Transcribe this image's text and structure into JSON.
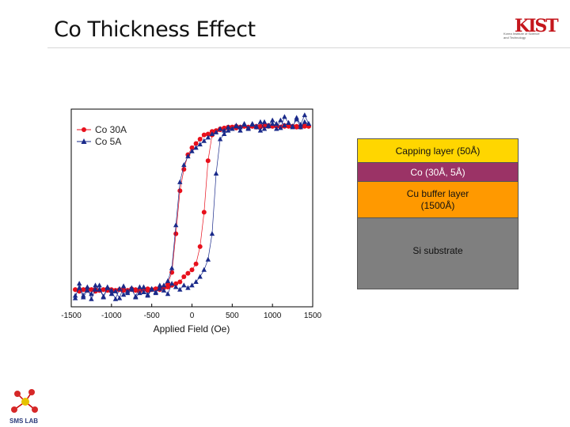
{
  "slide": {
    "title": "Co Thickness Effect",
    "logo_text": "KIST",
    "logo_sub": "Korea Institute of Science and Technology",
    "footer_logo_text": "SMS LAB"
  },
  "stack": {
    "capping": "Capping layer (50Å)",
    "co": "Co (30Å, 5Å)",
    "cu_line1": "Cu buffer layer",
    "cu_line2": "(1500Å)",
    "si": "Si substrate"
  },
  "chart_data": {
    "type": "scatter",
    "title": "",
    "xlabel": "Applied Field (Oe)",
    "ylabel": "",
    "xlim": [
      -1500,
      1500
    ],
    "ylim": [
      -1.15,
      1.15
    ],
    "xticks": [
      -1500,
      -1000,
      -500,
      0,
      500,
      1000,
      1500
    ],
    "legend_position": "top-left",
    "series": [
      {
        "name": "Co 30A",
        "color": "#e8101c",
        "marker": "circle",
        "x": [
          -1450,
          -1400,
          -1350,
          -1300,
          -1250,
          -1200,
          -1150,
          -1100,
          -1050,
          -1000,
          -950,
          -900,
          -850,
          -800,
          -750,
          -700,
          -650,
          -600,
          -550,
          -500,
          -450,
          -400,
          -350,
          -300,
          -250,
          -200,
          -150,
          -100,
          -50,
          0,
          50,
          100,
          150,
          200,
          250,
          300,
          350,
          400,
          450,
          500,
          550,
          600,
          650,
          700,
          750,
          800,
          850,
          900,
          950,
          1000,
          1050,
          1100,
          1150,
          1200,
          1250,
          1300,
          1350,
          1400,
          1450,
          1450,
          1400,
          1350,
          1300,
          1250,
          1200,
          1150,
          1100,
          1050,
          1000,
          950,
          900,
          850,
          800,
          750,
          700,
          650,
          600,
          550,
          500,
          450,
          400,
          350,
          300,
          250,
          200,
          150,
          100,
          50,
          0,
          -50,
          -100,
          -150,
          -200,
          -250,
          -300,
          -350,
          -400,
          -450,
          -500,
          -550,
          -600,
          -650,
          -700,
          -750,
          -800,
          -850,
          -900,
          -950,
          -1000,
          -1050,
          -1100,
          -1150,
          -1200,
          -1250,
          -1300,
          -1350,
          -1400,
          -1450
        ],
        "y": [
          -0.95,
          -0.97,
          -0.95,
          -0.96,
          -0.95,
          -0.97,
          -0.96,
          -0.95,
          -0.96,
          -0.97,
          -0.96,
          -0.95,
          -0.96,
          -0.96,
          -0.95,
          -0.96,
          -0.97,
          -0.95,
          -0.96,
          -0.95,
          -0.94,
          -0.95,
          -0.93,
          -0.92,
          -0.9,
          -0.88,
          -0.86,
          -0.8,
          -0.76,
          -0.72,
          -0.65,
          -0.45,
          -0.05,
          0.55,
          0.85,
          0.9,
          0.92,
          0.93,
          0.94,
          0.94,
          0.95,
          0.94,
          0.95,
          0.94,
          0.95,
          0.94,
          0.95,
          0.96,
          0.95,
          0.95,
          0.96,
          0.94,
          0.95,
          0.96,
          0.95,
          0.95,
          0.94,
          0.95,
          0.95,
          0.95,
          0.96,
          0.95,
          0.94,
          0.95,
          0.95,
          0.96,
          0.94,
          0.95,
          0.95,
          0.96,
          0.95,
          0.94,
          0.95,
          0.95,
          0.94,
          0.95,
          0.94,
          0.93,
          0.94,
          0.93,
          0.92,
          0.91,
          0.9,
          0.89,
          0.86,
          0.85,
          0.8,
          0.75,
          0.7,
          0.62,
          0.45,
          0.2,
          -0.3,
          -0.75,
          -0.88,
          -0.92,
          -0.93,
          -0.94,
          -0.95,
          -0.94,
          -0.95,
          -0.96,
          -0.95,
          -0.94,
          -0.96,
          -0.95,
          -0.95,
          -0.96,
          -0.95,
          -0.94,
          -0.95,
          -0.96,
          -0.95,
          -0.95,
          -0.94,
          -0.95,
          -0.96,
          -0.95
        ]
      },
      {
        "name": "Co 5A",
        "color": "#1a2a8a",
        "marker": "triangle",
        "x": [
          -1450,
          -1400,
          -1350,
          -1300,
          -1250,
          -1200,
          -1150,
          -1100,
          -1050,
          -1000,
          -950,
          -900,
          -850,
          -800,
          -750,
          -700,
          -650,
          -600,
          -550,
          -500,
          -450,
          -400,
          -350,
          -300,
          -250,
          -200,
          -150,
          -100,
          -50,
          0,
          50,
          100,
          150,
          200,
          250,
          300,
          350,
          400,
          450,
          500,
          550,
          600,
          650,
          700,
          750,
          800,
          850,
          900,
          950,
          1000,
          1050,
          1100,
          1150,
          1200,
          1250,
          1300,
          1350,
          1400,
          1450,
          1450,
          1400,
          1350,
          1300,
          1250,
          1200,
          1150,
          1100,
          1050,
          1000,
          950,
          900,
          850,
          800,
          750,
          700,
          650,
          600,
          550,
          500,
          450,
          400,
          350,
          300,
          250,
          200,
          150,
          100,
          50,
          0,
          -50,
          -100,
          -150,
          -200,
          -250,
          -300,
          -350,
          -400,
          -450,
          -500,
          -550,
          -600,
          -650,
          -700,
          -750,
          -800,
          -850,
          -900,
          -950,
          -1000,
          -1050,
          -1100,
          -1150,
          -1200,
          -1250,
          -1300,
          -1350,
          -1400,
          -1450
        ],
        "y": [
          -1.05,
          -0.88,
          -1.02,
          -0.92,
          -1.06,
          -0.95,
          -0.9,
          -1.04,
          -0.93,
          -1.0,
          -0.97,
          -1.05,
          -0.91,
          -0.99,
          -0.95,
          -1.03,
          -0.92,
          -0.98,
          -1.01,
          -0.94,
          -0.99,
          -0.9,
          -0.96,
          -1.0,
          -0.88,
          -0.92,
          -0.95,
          -0.9,
          -0.93,
          -0.9,
          -0.86,
          -0.8,
          -0.72,
          -0.6,
          -0.3,
          0.4,
          0.8,
          0.86,
          0.9,
          0.92,
          0.95,
          0.9,
          0.97,
          0.92,
          0.98,
          0.94,
          0.9,
          1.0,
          0.95,
          0.98,
          0.92,
          1.02,
          0.96,
          0.99,
          0.94,
          1.05,
          0.97,
          1.08,
          0.98,
          0.98,
          1.0,
          0.94,
          1.03,
          0.95,
          0.99,
          1.06,
          0.93,
          0.98,
          1.02,
          0.96,
          0.92,
          1.0,
          0.95,
          0.97,
          0.93,
          0.98,
          0.94,
          0.96,
          0.92,
          0.94,
          0.9,
          0.92,
          0.88,
          0.86,
          0.82,
          0.78,
          0.74,
          0.7,
          0.66,
          0.6,
          0.5,
          0.3,
          -0.2,
          -0.7,
          -0.85,
          -0.9,
          -0.94,
          -0.98,
          -0.95,
          -1.02,
          -0.92,
          -0.99,
          -1.04,
          -0.93,
          -0.97,
          -1.01,
          -0.94,
          -1.06,
          -0.96,
          -0.92,
          -1.03,
          -0.95,
          -0.9,
          -1.0,
          -0.96,
          -1.04,
          -0.93,
          -1.02
        ]
      }
    ]
  }
}
